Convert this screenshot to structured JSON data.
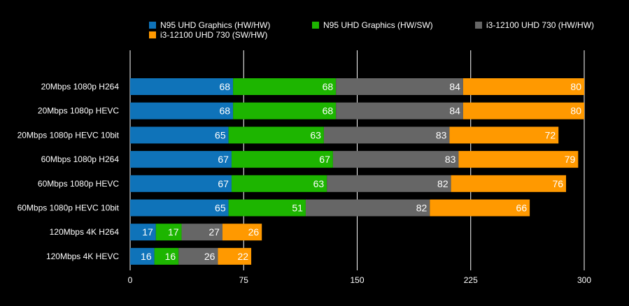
{
  "chart_data": {
    "type": "bar",
    "orientation": "horizontal",
    "stacked": true,
    "title": "",
    "xlabel": "",
    "ylabel": "",
    "xlim": [
      0,
      300
    ],
    "xticks": [
      0,
      75,
      150,
      225,
      300
    ],
    "grid": true,
    "legend_position": "top",
    "categories": [
      "20Mbps 1080p H264",
      "20Mbps 1080p HEVC",
      "20Mbps 1080p HEVC 10bit",
      "60Mbps 1080p H264",
      "60Mbps 1080p HEVC",
      "60Mbps 1080p HEVC 10bit",
      "120Mbps 4K H264",
      "120Mbps 4K HEVC"
    ],
    "series": [
      {
        "name": "N95 UHD Graphics (HW/HW)",
        "color": "#0f73b9",
        "values": [
          68,
          68,
          65,
          67,
          67,
          65,
          17,
          16
        ]
      },
      {
        "name": "N95 UHD Graphics (HW/SW)",
        "color": "#1db500",
        "values": [
          68,
          68,
          63,
          67,
          63,
          51,
          17,
          16
        ]
      },
      {
        "name": "i3-12100 UHD 730 (HW/HW)",
        "color": "#666666",
        "values": [
          84,
          84,
          83,
          83,
          82,
          82,
          27,
          26
        ]
      },
      {
        "name": "i3-12100 UHD 730 (SW/HW)",
        "color": "#ff9900",
        "values": [
          80,
          80,
          72,
          79,
          76,
          66,
          26,
          22
        ]
      }
    ]
  }
}
